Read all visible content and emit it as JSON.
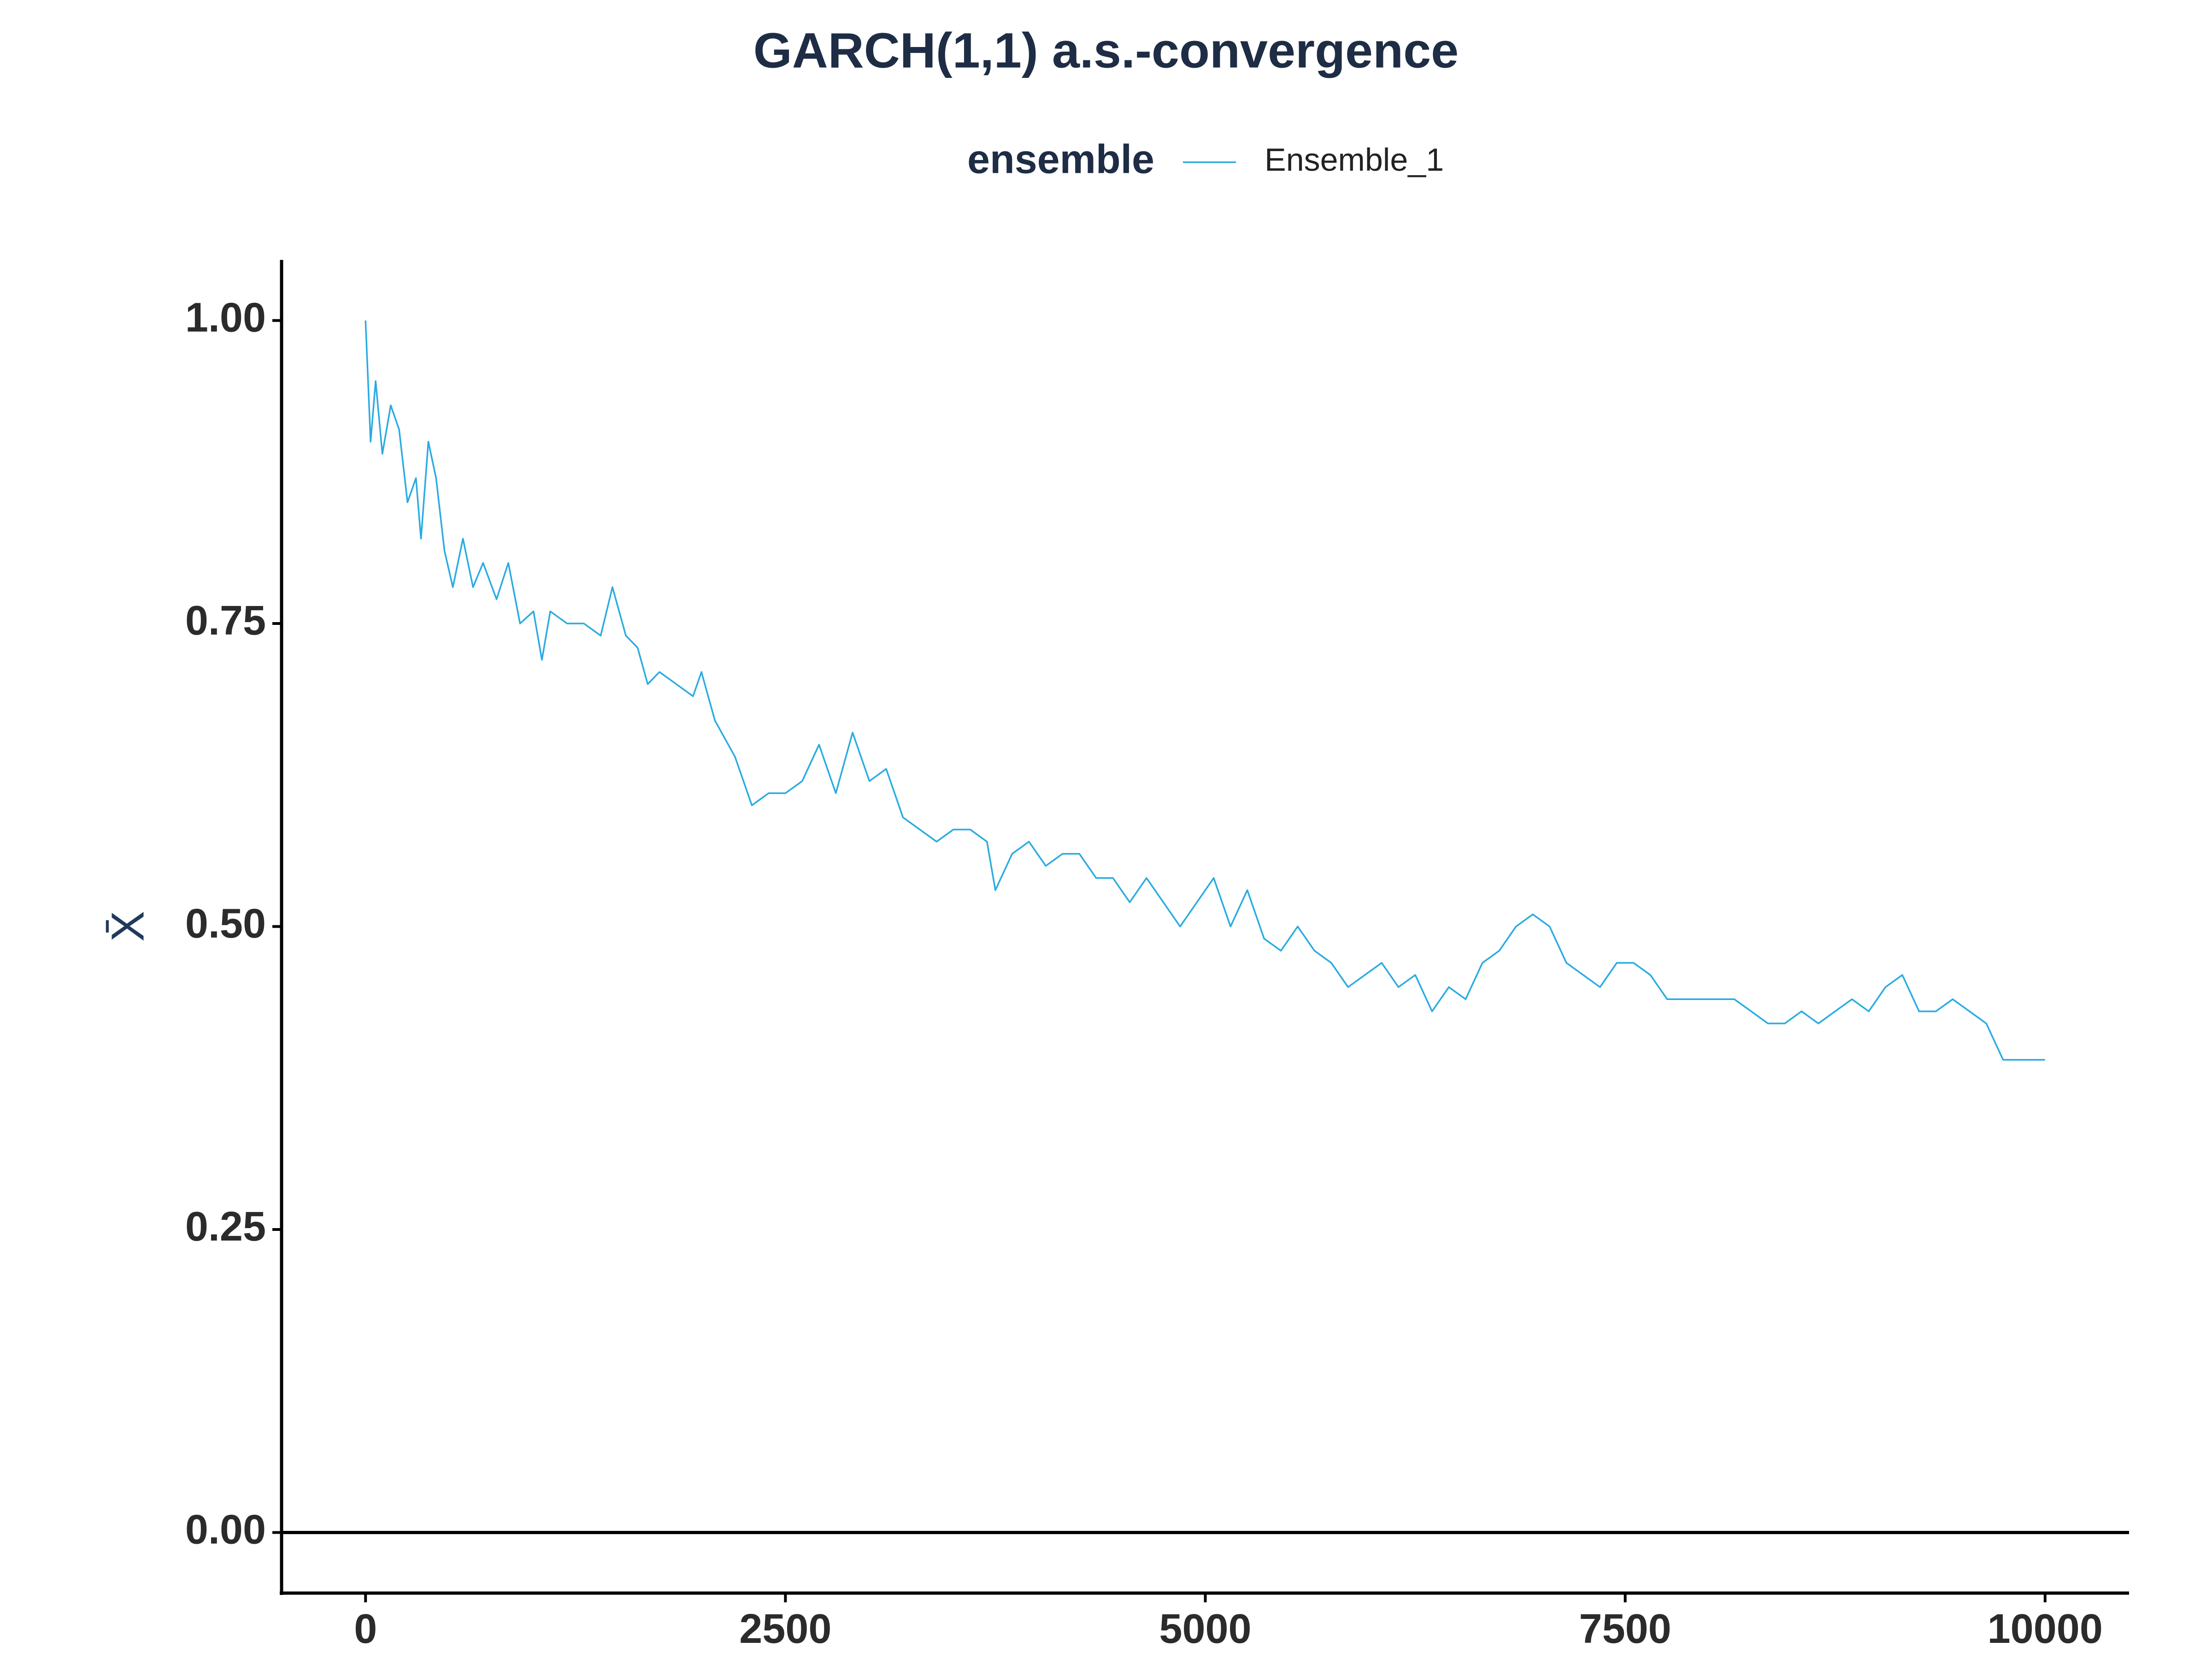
{
  "chart_data": {
    "type": "line",
    "title": "GARCH(1,1) a.s.-convergence",
    "legend_title": "ensemble",
    "ylabel": "X̄",
    "xlim": [
      -500,
      10500
    ],
    "ylim": [
      -0.05,
      1.05
    ],
    "xticks": [
      0,
      2500,
      5000,
      7500,
      10000
    ],
    "yticks": [
      {
        "value": 0,
        "label": "0.00"
      },
      {
        "value": 0.25,
        "label": "0.25"
      },
      {
        "value": 0.5,
        "label": "0.50"
      },
      {
        "value": 0.75,
        "label": "0.75"
      },
      {
        "value": 1,
        "label": "1.00"
      }
    ],
    "hline": 0,
    "grid": false,
    "legend_position": "top",
    "x": [
      0,
      30,
      60,
      100,
      150,
      200,
      250,
      300,
      330,
      374,
      420,
      470,
      520,
      580,
      640,
      700,
      780,
      850,
      920,
      1000,
      1050,
      1100,
      1200,
      1300,
      1400,
      1470,
      1550,
      1620,
      1680,
      1750,
      1850,
      1950,
      2000,
      2080,
      2200,
      2300,
      2400,
      2500,
      2600,
      2700,
      2800,
      2900,
      3000,
      3100,
      3200,
      3300,
      3400,
      3500,
      3600,
      3700,
      3750,
      3850,
      3950,
      4050,
      4150,
      4250,
      4350,
      4450,
      4550,
      4650,
      4750,
      4850,
      4950,
      5050,
      5150,
      5250,
      5350,
      5450,
      5550,
      5650,
      5750,
      5850,
      5950,
      6050,
      6150,
      6250,
      6350,
      6450,
      6550,
      6650,
      6750,
      6850,
      6950,
      7050,
      7150,
      7250,
      7350,
      7450,
      7550,
      7650,
      7750,
      7850,
      7950,
      8050,
      8150,
      8250,
      8350,
      8450,
      8550,
      8650,
      8750,
      8850,
      8950,
      9050,
      9150,
      9250,
      9350,
      9450,
      9550,
      9650,
      9750,
      9850,
      9950,
      10000
    ],
    "series": [
      {
        "name": "Ensemble_1",
        "color": "#29abe2",
        "values": [
          1.0,
          0.9,
          0.95,
          0.89,
          0.93,
          0.91,
          0.85,
          0.87,
          0.82,
          0.9,
          0.87,
          0.81,
          0.78,
          0.82,
          0.78,
          0.8,
          0.77,
          0.8,
          0.75,
          0.76,
          0.72,
          0.76,
          0.75,
          0.75,
          0.74,
          0.78,
          0.74,
          0.73,
          0.7,
          0.71,
          0.7,
          0.69,
          0.71,
          0.67,
          0.64,
          0.6,
          0.61,
          0.61,
          0.62,
          0.65,
          0.61,
          0.66,
          0.62,
          0.63,
          0.59,
          0.58,
          0.57,
          0.58,
          0.58,
          0.57,
          0.53,
          0.56,
          0.57,
          0.55,
          0.56,
          0.56,
          0.54,
          0.54,
          0.52,
          0.54,
          0.52,
          0.5,
          0.52,
          0.54,
          0.5,
          0.53,
          0.49,
          0.48,
          0.5,
          0.48,
          0.47,
          0.45,
          0.46,
          0.47,
          0.45,
          0.46,
          0.43,
          0.45,
          0.44,
          0.47,
          0.48,
          0.5,
          0.51,
          0.5,
          0.47,
          0.46,
          0.45,
          0.47,
          0.47,
          0.46,
          0.44,
          0.44,
          0.44,
          0.44,
          0.44,
          0.43,
          0.42,
          0.42,
          0.43,
          0.42,
          0.43,
          0.44,
          0.43,
          0.45,
          0.46,
          0.43,
          0.43,
          0.44,
          0.43,
          0.42,
          0.39,
          0.39,
          0.39,
          0.39
        ]
      }
    ]
  }
}
